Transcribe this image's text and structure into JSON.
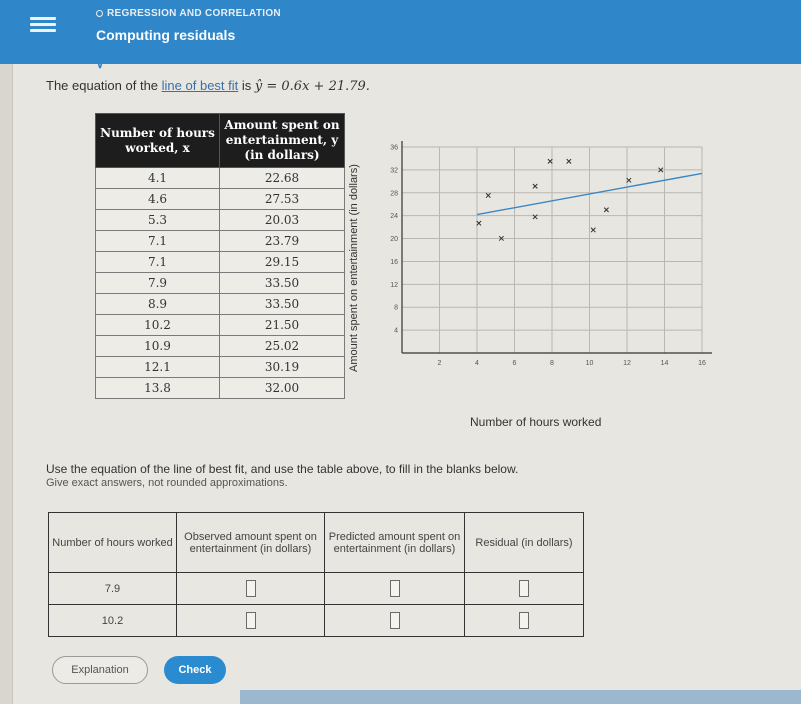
{
  "header": {
    "topic": "REGRESSION AND CORRELATION",
    "title": "Computing residuals"
  },
  "equation": {
    "prefix": "The equation of the",
    "link": "line of best fit",
    "middle": "is",
    "formula": "ŷ = 0.6x + 21.79."
  },
  "data_table": {
    "headers": [
      "Number of hours worked, x",
      "Amount spent on entertainment, y (in dollars)"
    ],
    "rows": [
      [
        "4.1",
        "22.68"
      ],
      [
        "4.6",
        "27.53"
      ],
      [
        "5.3",
        "20.03"
      ],
      [
        "7.1",
        "23.79"
      ],
      [
        "7.1",
        "29.15"
      ],
      [
        "7.9",
        "33.50"
      ],
      [
        "8.9",
        "33.50"
      ],
      [
        "10.2",
        "21.50"
      ],
      [
        "10.9",
        "25.02"
      ],
      [
        "12.1",
        "30.19"
      ],
      [
        "13.8",
        "32.00"
      ]
    ]
  },
  "chart_data": {
    "type": "scatter",
    "xlabel": "Number of hours worked",
    "ylabel": "Amount spent on entertainment (in dollars)",
    "xlim": [
      0,
      16
    ],
    "ylim": [
      0,
      36
    ],
    "x_ticks": [
      "2",
      "4",
      "6",
      "8",
      "10",
      "12",
      "14",
      "16"
    ],
    "y_ticks": [
      "4",
      "8",
      "12",
      "16",
      "20",
      "24",
      "28",
      "32",
      "36"
    ],
    "grid": true,
    "points": {
      "x": [
        4.1,
        4.6,
        5.3,
        7.1,
        7.1,
        7.9,
        8.9,
        10.2,
        10.9,
        12.1,
        13.8
      ],
      "y": [
        22.68,
        27.53,
        20.03,
        23.79,
        29.15,
        33.5,
        33.5,
        21.5,
        25.02,
        30.19,
        32.0
      ]
    },
    "best_fit": {
      "slope": 0.6,
      "intercept": 21.79
    }
  },
  "instructions": {
    "line1": "Use the equation of the line of best fit, and use the table above, to fill in the blanks below.",
    "line2": "Give exact answers, not rounded approximations."
  },
  "answer_table": {
    "headers": [
      "Number of hours worked",
      "Observed amount spent on entertainment (in dollars)",
      "Predicted amount spent on entertainment (in dollars)",
      "Residual (in dollars)"
    ],
    "rows": [
      {
        "hours": "7.9"
      },
      {
        "hours": "10.2"
      }
    ]
  },
  "buttons": {
    "explanation": "Explanation",
    "check": "Check"
  },
  "colors": {
    "header_bg": "#2f86c9",
    "check_btn": "#2b8bd1"
  }
}
